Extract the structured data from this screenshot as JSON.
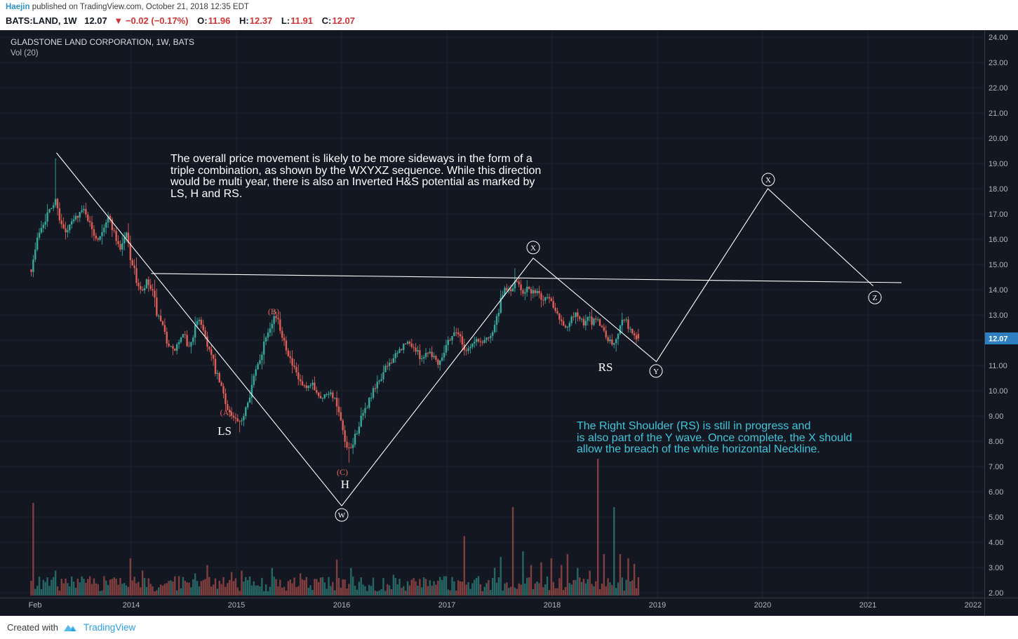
{
  "header": {
    "line1": {
      "author": "Haejin",
      "rest": " published on TradingView.com, October 21, 2018 12:35 EDT"
    },
    "line2": {
      "symbol": "BATS:LAND, 1W",
      "last": "12.07",
      "change": "▼ −0.02 (−0.17%)",
      "items": [
        {
          "label": "O:",
          "value": "11.96"
        },
        {
          "label": "H:",
          "value": "12.37"
        },
        {
          "label": "L:",
          "value": "11.91"
        },
        {
          "label": "C:",
          "value": "12.07"
        }
      ]
    }
  },
  "chart_overlay": {
    "title": "GLADSTONE LAND CORPORATION, 1W, BATS",
    "indicator": "Vol (20)"
  },
  "annotations": {
    "white_note_lines": [
      "The overall price movement is likely to be more sideways in the form of a",
      "triple combination, as shown by the WXYXZ sequence. While this direction",
      "would be multi year, there is also an Inverted H&S potential as marked by",
      "LS, H and RS."
    ],
    "cyan_note_lines": [
      "The Right Shoulder (RS) is still in progress and",
      "is also part of the Y wave. Once complete, the X should",
      "allow the breach of the white horizontal Neckline."
    ]
  },
  "footer": {
    "created_with": "Created with",
    "brand": "TradingView"
  },
  "colors": {
    "bg": "#131722",
    "grid": "#1e2330",
    "axis_text": "#b2b5be",
    "separator": "#363a45",
    "up": "#36a89b",
    "down": "#dd5e56",
    "vol_up": "rgba(54,168,155,0.55)",
    "vol_down": "rgba(221,94,86,0.55)",
    "trend": "#ffffff",
    "wave": "#e8645e",
    "cyan": "#3ec6d9",
    "tag_bg": "#2d7fc1",
    "tag_text": "#ffffff",
    "accent_blue": "#2e93c9",
    "red_text": "#cf3434",
    "brand_blue": "#2f9fe6"
  },
  "chart_data": {
    "type": "candlestick",
    "symbol": "GLADSTONE LAND CORPORATION",
    "timeframe": "1W",
    "exchange": "BATS",
    "legend": [
      "GLADSTONE LAND CORPORATION, 1W, BATS",
      "Vol (20)"
    ],
    "last_price": 12.07,
    "y_axis": {
      "min": 2,
      "max": 24,
      "step": 1,
      "format_decimals": 2
    },
    "x_axis": {
      "ticks": [
        {
          "t": 2013.087,
          "label": "Feb",
          "grid": false
        },
        {
          "t": 2014,
          "label": "2014",
          "grid": true
        },
        {
          "t": 2015,
          "label": "2015",
          "grid": true
        },
        {
          "t": 2016,
          "label": "2016",
          "grid": true
        },
        {
          "t": 2017,
          "label": "2017",
          "grid": true
        },
        {
          "t": 2018,
          "label": "2018",
          "grid": true
        },
        {
          "t": 2019,
          "label": "2019",
          "grid": true
        },
        {
          "t": 2020,
          "label": "2020",
          "grid": true
        },
        {
          "t": 2021,
          "label": "2021",
          "grid": true
        },
        {
          "t": 2022,
          "label": "2022",
          "grid": true
        }
      ]
    },
    "candle_range": {
      "start": 2013.05,
      "end": 2018.81,
      "per_year": 52
    },
    "price_path": [
      [
        2013.05,
        14.8
      ],
      [
        2013.09,
        15.6
      ],
      [
        2013.13,
        16.4
      ],
      [
        2013.19,
        16.9
      ],
      [
        2013.25,
        17.3
      ],
      [
        2013.29,
        17.6
      ],
      [
        2013.33,
        16.6
      ],
      [
        2013.38,
        16.2
      ],
      [
        2013.44,
        16.7
      ],
      [
        2013.5,
        17.0
      ],
      [
        2013.56,
        17.2
      ],
      [
        2013.62,
        16.4
      ],
      [
        2013.68,
        16.0
      ],
      [
        2013.73,
        16.5
      ],
      [
        2013.79,
        16.9
      ],
      [
        2013.85,
        16.1
      ],
      [
        2013.9,
        15.6
      ],
      [
        2013.95,
        16.3
      ],
      [
        2014.0,
        15.2
      ],
      [
        2014.05,
        14.4
      ],
      [
        2014.1,
        13.8
      ],
      [
        2014.15,
        14.3
      ],
      [
        2014.2,
        13.9
      ],
      [
        2014.25,
        13.0
      ],
      [
        2014.3,
        12.4
      ],
      [
        2014.35,
        11.9
      ],
      [
        2014.4,
        11.5
      ],
      [
        2014.45,
        11.9
      ],
      [
        2014.5,
        12.2
      ],
      [
        2014.55,
        11.7
      ],
      [
        2014.6,
        12.4
      ],
      [
        2014.65,
        12.9
      ],
      [
        2014.7,
        12.2
      ],
      [
        2014.75,
        11.5
      ],
      [
        2014.8,
        10.8
      ],
      [
        2014.85,
        10.2
      ],
      [
        2014.9,
        9.5
      ],
      [
        2014.95,
        9.0
      ],
      [
        2015.0,
        8.8
      ],
      [
        2015.04,
        8.6
      ],
      [
        2015.08,
        9.3
      ],
      [
        2015.13,
        10.0
      ],
      [
        2015.18,
        10.7
      ],
      [
        2015.23,
        11.4
      ],
      [
        2015.28,
        12.2
      ],
      [
        2015.33,
        12.8
      ],
      [
        2015.37,
        13.0
      ],
      [
        2015.42,
        12.4
      ],
      [
        2015.47,
        11.8
      ],
      [
        2015.52,
        11.1
      ],
      [
        2015.57,
        10.6
      ],
      [
        2015.62,
        10.2
      ],
      [
        2015.67,
        10.0
      ],
      [
        2015.72,
        10.3
      ],
      [
        2015.77,
        9.9
      ],
      [
        2015.82,
        9.7
      ],
      [
        2015.87,
        10.0
      ],
      [
        2015.92,
        9.8
      ],
      [
        2015.96,
        9.3
      ],
      [
        2016.0,
        8.5
      ],
      [
        2016.04,
        7.7
      ],
      [
        2016.08,
        7.6
      ],
      [
        2016.12,
        8.1
      ],
      [
        2016.17,
        8.7
      ],
      [
        2016.22,
        9.2
      ],
      [
        2016.27,
        9.7
      ],
      [
        2016.32,
        10.1
      ],
      [
        2016.37,
        10.5
      ],
      [
        2016.42,
        10.9
      ],
      [
        2016.47,
        11.2
      ],
      [
        2016.52,
        11.4
      ],
      [
        2016.57,
        11.7
      ],
      [
        2016.62,
        11.9
      ],
      [
        2016.67,
        11.8
      ],
      [
        2016.72,
        11.5
      ],
      [
        2016.77,
        11.3
      ],
      [
        2016.82,
        11.6
      ],
      [
        2016.87,
        11.4
      ],
      [
        2016.92,
        11.1
      ],
      [
        2016.96,
        11.5
      ],
      [
        2017.0,
        11.9
      ],
      [
        2017.05,
        12.2
      ],
      [
        2017.1,
        12.4
      ],
      [
        2017.14,
        11.9
      ],
      [
        2017.18,
        11.6
      ],
      [
        2017.23,
        11.8
      ],
      [
        2017.28,
        12.0
      ],
      [
        2017.33,
        11.9
      ],
      [
        2017.38,
        12.1
      ],
      [
        2017.43,
        12.3
      ],
      [
        2017.47,
        12.8
      ],
      [
        2017.52,
        13.6
      ],
      [
        2017.56,
        14.1
      ],
      [
        2017.6,
        13.9
      ],
      [
        2017.64,
        14.2
      ],
      [
        2017.68,
        14.3
      ],
      [
        2017.72,
        13.9
      ],
      [
        2017.76,
        14.1
      ],
      [
        2017.8,
        13.8
      ],
      [
        2017.85,
        14.0
      ],
      [
        2017.9,
        13.6
      ],
      [
        2017.95,
        13.8
      ],
      [
        2018.0,
        13.5
      ],
      [
        2018.05,
        13.1
      ],
      [
        2018.1,
        12.7
      ],
      [
        2018.14,
        12.4
      ],
      [
        2018.18,
        12.8
      ],
      [
        2018.22,
        13.1
      ],
      [
        2018.26,
        12.9
      ],
      [
        2018.3,
        12.6
      ],
      [
        2018.34,
        12.9
      ],
      [
        2018.38,
        12.7
      ],
      [
        2018.42,
        12.9
      ],
      [
        2018.46,
        12.6
      ],
      [
        2018.5,
        12.3
      ],
      [
        2018.54,
        12.0
      ],
      [
        2018.58,
        11.8
      ],
      [
        2018.62,
        12.1
      ],
      [
        2018.66,
        13.0
      ],
      [
        2018.7,
        12.8
      ],
      [
        2018.74,
        12.4
      ],
      [
        2018.78,
        12.2
      ],
      [
        2018.81,
        12.07
      ]
    ],
    "high_spikes": [
      [
        2013.29,
        19.2
      ],
      [
        2017.64,
        14.85
      ]
    ],
    "low_spikes": [
      [
        2016.06,
        7.15
      ],
      [
        2015.04,
        8.35
      ],
      [
        2018.6,
        11.55
      ]
    ],
    "volume_spikes": [
      [
        2013.06,
        0.67,
        "d"
      ],
      [
        2013.29,
        0.18,
        "u"
      ],
      [
        2013.75,
        0.14,
        "d"
      ],
      [
        2013.99,
        0.27,
        "d"
      ],
      [
        2014.1,
        0.18,
        "d"
      ],
      [
        2014.45,
        0.14,
        "d"
      ],
      [
        2014.6,
        0.16,
        "u"
      ],
      [
        2014.72,
        0.22,
        "d"
      ],
      [
        2014.95,
        0.17,
        "d"
      ],
      [
        2015.05,
        0.18,
        "d"
      ],
      [
        2015.33,
        0.2,
        "u"
      ],
      [
        2015.6,
        0.16,
        "d"
      ],
      [
        2015.8,
        0.13,
        "d"
      ],
      [
        2015.95,
        0.26,
        "d"
      ],
      [
        2016.08,
        0.2,
        "u"
      ],
      [
        2016.3,
        0.13,
        "u"
      ],
      [
        2016.5,
        0.15,
        "u"
      ],
      [
        2016.8,
        0.12,
        "d"
      ],
      [
        2017.0,
        0.14,
        "u"
      ],
      [
        2017.17,
        0.43,
        "d"
      ],
      [
        2017.3,
        0.14,
        "u"
      ],
      [
        2017.45,
        0.2,
        "u"
      ],
      [
        2017.52,
        0.28,
        "u"
      ],
      [
        2017.62,
        0.64,
        "d"
      ],
      [
        2017.72,
        0.32,
        "u"
      ],
      [
        2017.8,
        0.22,
        "d"
      ],
      [
        2017.9,
        0.24,
        "d"
      ],
      [
        2018.0,
        0.27,
        "d"
      ],
      [
        2018.08,
        0.22,
        "d"
      ],
      [
        2018.14,
        0.3,
        "d"
      ],
      [
        2018.25,
        0.2,
        "u"
      ],
      [
        2018.35,
        0.18,
        "d"
      ],
      [
        2018.44,
        0.99,
        "d"
      ],
      [
        2018.5,
        0.3,
        "d"
      ],
      [
        2018.58,
        0.64,
        "u"
      ],
      [
        2018.65,
        0.3,
        "d"
      ],
      [
        2018.72,
        0.27,
        "d"
      ],
      [
        2018.78,
        0.23,
        "d"
      ]
    ],
    "trend_lines": [
      {
        "name": "downtrend",
        "points": [
          [
            2013.29,
            19.42
          ],
          [
            2016.0,
            5.44
          ]
        ]
      },
      {
        "name": "wxyxz-zigzag",
        "points": [
          [
            2016.0,
            5.44
          ],
          [
            2017.82,
            15.25
          ],
          [
            2018.99,
            11.15
          ],
          [
            2020.05,
            18.0
          ],
          [
            2021.05,
            14.15
          ]
        ]
      },
      {
        "name": "neckline",
        "points": [
          [
            2014.19,
            14.64
          ],
          [
            2021.32,
            14.28
          ]
        ]
      }
    ],
    "circle_labels": [
      {
        "text": "W",
        "t": 2016.0,
        "p": 5.08
      },
      {
        "text": "X",
        "t": 2017.82,
        "p": 15.67
      },
      {
        "text": "Y",
        "t": 2018.987,
        "p": 10.78
      },
      {
        "text": "X",
        "t": 2020.053,
        "p": 18.36
      },
      {
        "text": "Z",
        "t": 2021.067,
        "p": 13.69
      }
    ],
    "wave_labels": [
      {
        "text": "(A)",
        "t": 2014.9,
        "p": 9.14
      },
      {
        "text": "(B)",
        "t": 2015.353,
        "p": 13.14
      },
      {
        "text": "(C)",
        "t": 2016.007,
        "p": 6.78
      }
    ],
    "hs_labels": [
      {
        "text": "LS",
        "t": 2014.887,
        "p": 8.42
      },
      {
        "text": "H",
        "t": 2016.033,
        "p": 6.31
      },
      {
        "text": "RS",
        "t": 2018.507,
        "p": 10.94
      }
    ]
  }
}
